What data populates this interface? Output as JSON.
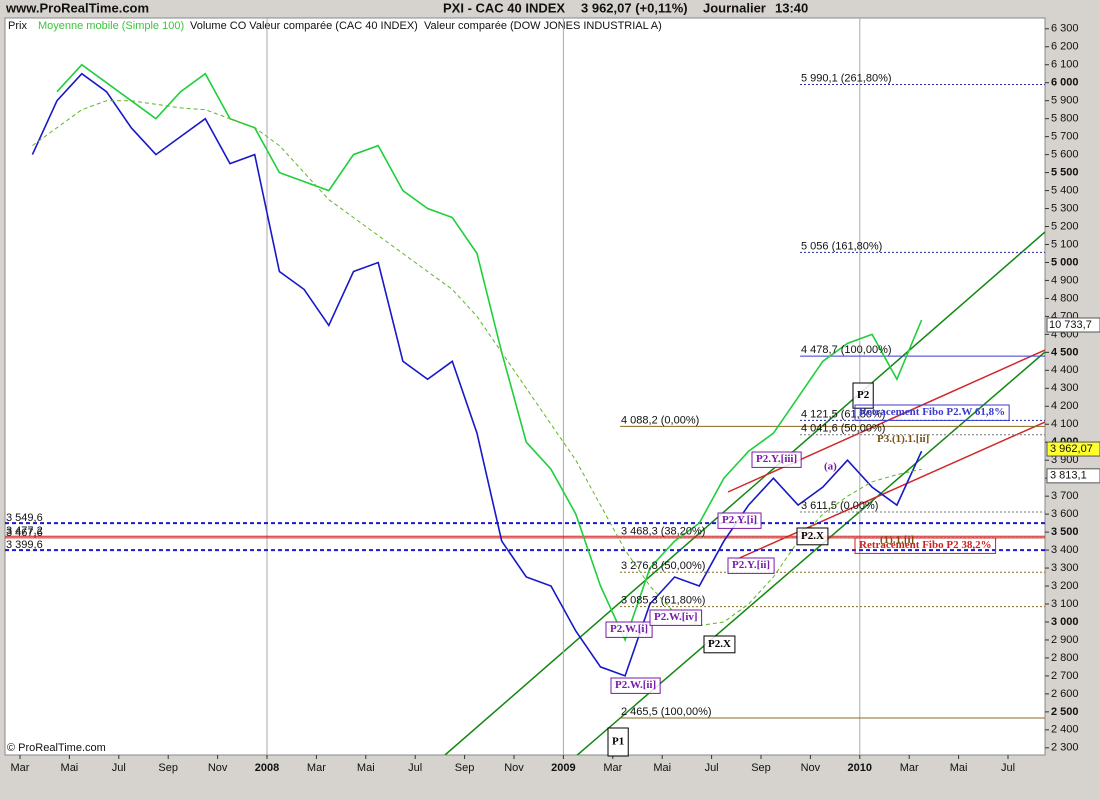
{
  "header": {
    "site": "www.ProRealTime.com",
    "instrument": "PXI - CAC 40 INDEX",
    "quote": "3 962,07 (+0,11%)",
    "period": "Journalier",
    "time": "13:40"
  },
  "legend": [
    "Prix",
    "Moyenne mobile (Simple 100)",
    "Volume CO Valeur comparée (CAC 40 INDEX)",
    "Valeur comparée (DOW JONES INDUSTRIAL A)"
  ],
  "footer": "© ProRealTime.com",
  "chart_data": {
    "type": "line",
    "x": [
      "2007-03",
      "2007-04",
      "2007-05",
      "2007-06",
      "2007-07",
      "2007-08",
      "2007-09",
      "2007-10",
      "2007-11",
      "2007-12",
      "2008-01",
      "2008-02",
      "2008-03",
      "2008-04",
      "2008-05",
      "2008-06",
      "2008-07",
      "2008-08",
      "2008-09",
      "2008-10",
      "2008-11",
      "2008-12",
      "2009-01",
      "2009-02",
      "2009-03",
      "2009-04",
      "2009-05",
      "2009-06",
      "2009-07",
      "2009-08",
      "2009-09",
      "2009-10",
      "2009-11",
      "2009-12",
      "2010-01",
      "2010-02",
      "2010-03"
    ],
    "series": [
      {
        "name": "Valeur comparée (DOW JONES INDUSTRIAL A)",
        "color": "#1ecf3c",
        "style": "solid",
        "values": [
          null,
          5950,
          6100,
          6000,
          5900,
          5800,
          5950,
          6050,
          5800,
          5750,
          5500,
          5450,
          5400,
          5600,
          5650,
          5400,
          5300,
          5250,
          5050,
          4500,
          4000,
          3850,
          3600,
          3200,
          2900,
          3300,
          3450,
          3550,
          3800,
          3950,
          4050,
          4250,
          4450,
          4550,
          4600,
          4350,
          4680
        ]
      },
      {
        "name": "Prix",
        "color": "#1818c8",
        "style": "solid",
        "values": [
          5600,
          5900,
          6050,
          5950,
          5750,
          5600,
          5700,
          5800,
          5550,
          5600,
          4950,
          4850,
          4650,
          4950,
          5000,
          4450,
          4350,
          4450,
          4050,
          3450,
          3250,
          3200,
          2950,
          2750,
          2700,
          3100,
          3250,
          3200,
          3450,
          3650,
          3800,
          3650,
          3750,
          3900,
          3750,
          3650,
          3950
        ]
      },
      {
        "name": "Moyenne mobile (Simple 100)",
        "color": "#5fb52a",
        "style": "dashed",
        "values": [
          5650,
          5750,
          5850,
          5900,
          5900,
          5880,
          5860,
          5850,
          5800,
          5750,
          5650,
          5500,
          5350,
          5250,
          5150,
          5050,
          4950,
          4850,
          4700,
          4500,
          4300,
          4100,
          3900,
          3650,
          3400,
          3200,
          3050,
          2980,
          3000,
          3100,
          3250,
          3450,
          3600,
          3700,
          3780,
          3820,
          3850
        ]
      }
    ],
    "xlim": [
      "2007-02",
      "2010-08"
    ],
    "xticks": [
      {
        "value": "2007-03",
        "label": "Mar"
      },
      {
        "value": "2007-05",
        "label": "Mai"
      },
      {
        "value": "2007-07",
        "label": "Jul"
      },
      {
        "value": "2007-09",
        "label": "Sep"
      },
      {
        "value": "2007-11",
        "label": "Nov"
      },
      {
        "value": "2008-01",
        "label": "2008"
      },
      {
        "value": "2008-03",
        "label": "Mar"
      },
      {
        "value": "2008-05",
        "label": "Mai"
      },
      {
        "value": "2008-07",
        "label": "Jul"
      },
      {
        "value": "2008-09",
        "label": "Sep"
      },
      {
        "value": "2008-11",
        "label": "Nov"
      },
      {
        "value": "2009-01",
        "label": "2009"
      },
      {
        "value": "2009-03",
        "label": "Mar"
      },
      {
        "value": "2009-05",
        "label": "Mai"
      },
      {
        "value": "2009-07",
        "label": "Jul"
      },
      {
        "value": "2009-09",
        "label": "Sep"
      },
      {
        "value": "2009-11",
        "label": "Nov"
      },
      {
        "value": "2010-01",
        "label": "2010"
      },
      {
        "value": "2010-03",
        "label": "Mar"
      },
      {
        "value": "2010-05",
        "label": "Mai"
      },
      {
        "value": "2010-07",
        "label": "Jul"
      }
    ],
    "ylim": [
      2260,
      6360
    ],
    "yticks": [
      {
        "value": 2300,
        "label": "2 300"
      },
      {
        "value": 2400,
        "label": "2 400"
      },
      {
        "value": 2500,
        "label": "2 500"
      },
      {
        "value": 2600,
        "label": "2 600"
      },
      {
        "value": 2700,
        "label": "2 700"
      },
      {
        "value": 2800,
        "label": "2 800"
      },
      {
        "value": 2900,
        "label": "2 900"
      },
      {
        "value": 3000,
        "label": "3 000"
      },
      {
        "value": 3100,
        "label": "3 100"
      },
      {
        "value": 3200,
        "label": "3 200"
      },
      {
        "value": 3300,
        "label": "3 300"
      },
      {
        "value": 3400,
        "label": "3 400"
      },
      {
        "value": 3500,
        "label": "3 500"
      },
      {
        "value": 3600,
        "label": "3 600"
      },
      {
        "value": 3700,
        "label": "3 700"
      },
      {
        "value": 3800,
        "label": "3 800"
      },
      {
        "value": 3900,
        "label": "3 900"
      },
      {
        "value": 4000,
        "label": "4 000"
      },
      {
        "value": 4100,
        "label": "4 100"
      },
      {
        "value": 4200,
        "label": "4 200"
      },
      {
        "value": 4300,
        "label": "4 300"
      },
      {
        "value": 4400,
        "label": "4 400"
      },
      {
        "value": 4500,
        "label": "4 500"
      },
      {
        "value": 4600,
        "label": "4 600"
      },
      {
        "value": 4700,
        "label": "4 700"
      },
      {
        "value": 4800,
        "label": "4 800"
      },
      {
        "value": 4900,
        "label": "4 900"
      },
      {
        "value": 5000,
        "label": "5 000"
      },
      {
        "value": 5100,
        "label": "5 100"
      },
      {
        "value": 5200,
        "label": "5 200"
      },
      {
        "value": 5300,
        "label": "5 300"
      },
      {
        "value": 5400,
        "label": "5 400"
      },
      {
        "value": 5500,
        "label": "5 500"
      },
      {
        "value": 5600,
        "label": "5 600"
      },
      {
        "value": 5700,
        "label": "5 700"
      },
      {
        "value": 5800,
        "label": "5 800"
      },
      {
        "value": 5900,
        "label": "5 900"
      },
      {
        "value": 6000,
        "label": "6 000"
      },
      {
        "value": 6100,
        "label": "6 100"
      },
      {
        "value": 6200,
        "label": "6 200"
      },
      {
        "value": 6300,
        "label": "6 300"
      }
    ],
    "fib_levels": [
      {
        "value": 5990.1,
        "label": "5 990,1 (261,80%)",
        "color": "#2a2a9a",
        "style": "dotted"
      },
      {
        "value": 5056,
        "label": "5 056 (161,80%)",
        "color": "#2a2a9a",
        "style": "dotted"
      },
      {
        "value": 4478.7,
        "label": "4 478,7 (100,00%)",
        "color": "#3a3ad0",
        "style": "solid"
      },
      {
        "value": 4121.5,
        "label": "4 121,5 (61,80%)",
        "color": "#2a2a9a",
        "style": "dotted"
      },
      {
        "value": 4088.2,
        "label": "4 088,2 (0,00%)",
        "color": "#8a6a20",
        "style": "solid"
      },
      {
        "value": 4041.6,
        "label": "4 041,6 (50,00%)",
        "color": "#777777",
        "style": "dotted"
      },
      {
        "value": 3611.5,
        "label": "3 611,5 (0,00%)",
        "color": "#777777",
        "style": "dotted"
      },
      {
        "value": 3468.3,
        "label": "3 468,3 (38,20%)",
        "color": "#8a6a20",
        "style": "dotted"
      },
      {
        "value": 3276.8,
        "label": "3 276,8 (50,00%)",
        "color": "#8a6a20",
        "style": "dotted"
      },
      {
        "value": 3085.3,
        "label": "3 085,3 (61,80%)",
        "color": "#8a6a20",
        "style": "dotted"
      },
      {
        "value": 2465.5,
        "label": "2 465,5 (100,00%)",
        "color": "#8a6a20",
        "style": "solid"
      }
    ],
    "support_levels": [
      {
        "value": 3549.6,
        "label": "3 549,6",
        "color": "#1a1ad0",
        "style": "dashed"
      },
      {
        "value": 3477.2,
        "label": "3 477,2",
        "color": "#d02020",
        "style": "solid"
      },
      {
        "value": 3467.6,
        "label": "3 467,6",
        "color": "#d02020",
        "style": "solid"
      },
      {
        "value": 3399.6,
        "label": "3 399,6",
        "color": "#1a1ad0",
        "style": "dashed"
      }
    ],
    "price_tags": [
      {
        "value": 3962.07,
        "label": "3 962,07",
        "color": "#ffff30"
      },
      {
        "value": 3813.1,
        "label": "3 813,1",
        "color": "#ffffff"
      }
    ],
    "compare_tag": "10 733,7",
    "annotations": [
      "P1",
      "P2",
      "P2.X",
      "P2.X",
      "P2.W.[ii]",
      "P2.W.[i]",
      "P2.W.[iv]",
      "P2.Y.[ii]",
      "P2.Y.[iii]",
      "P2.Y.[i]",
      "(a)",
      "(1).1.[i]",
      "P3.(1).1.[ii]",
      "Retracement Fibo P2.W 61,8%",
      "Retracement Fibo P2 38,2%"
    ]
  }
}
